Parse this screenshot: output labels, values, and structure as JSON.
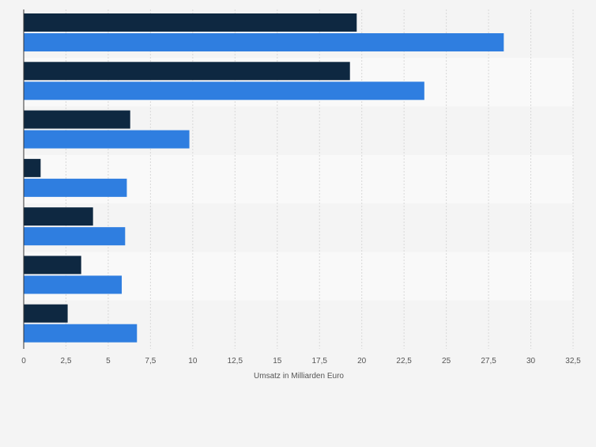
{
  "chart_data": {
    "type": "bar",
    "orientation": "horizontal",
    "title": "",
    "xlabel": "Umsatz in Milliarden Euro",
    "ylabel": "",
    "xlim": [
      0,
      32.5
    ],
    "ticks": [
      "0",
      "2,5",
      "5",
      "7,5",
      "10",
      "12,5",
      "15",
      "17,5",
      "20",
      "22,5",
      "25",
      "27,5",
      "30",
      "32,5"
    ],
    "grid": true,
    "legend": "none",
    "categories": [
      "",
      "",
      "",
      "",
      "",
      "",
      ""
    ],
    "series": [
      {
        "color": "#0e2841",
        "values": [
          19.7,
          19.3,
          6.3,
          1.0,
          4.1,
          3.4,
          2.6
        ]
      },
      {
        "color": "#2f7ee0",
        "values": [
          28.4,
          23.7,
          9.8,
          6.1,
          6.0,
          5.8,
          6.7
        ]
      }
    ]
  },
  "colors": {
    "background": "#f4f4f4",
    "band_dark": "#f4f4f4",
    "band_light": "#f9f9f9",
    "grid": "#d8d8d8",
    "axis": "#333333",
    "text": "#555555"
  }
}
